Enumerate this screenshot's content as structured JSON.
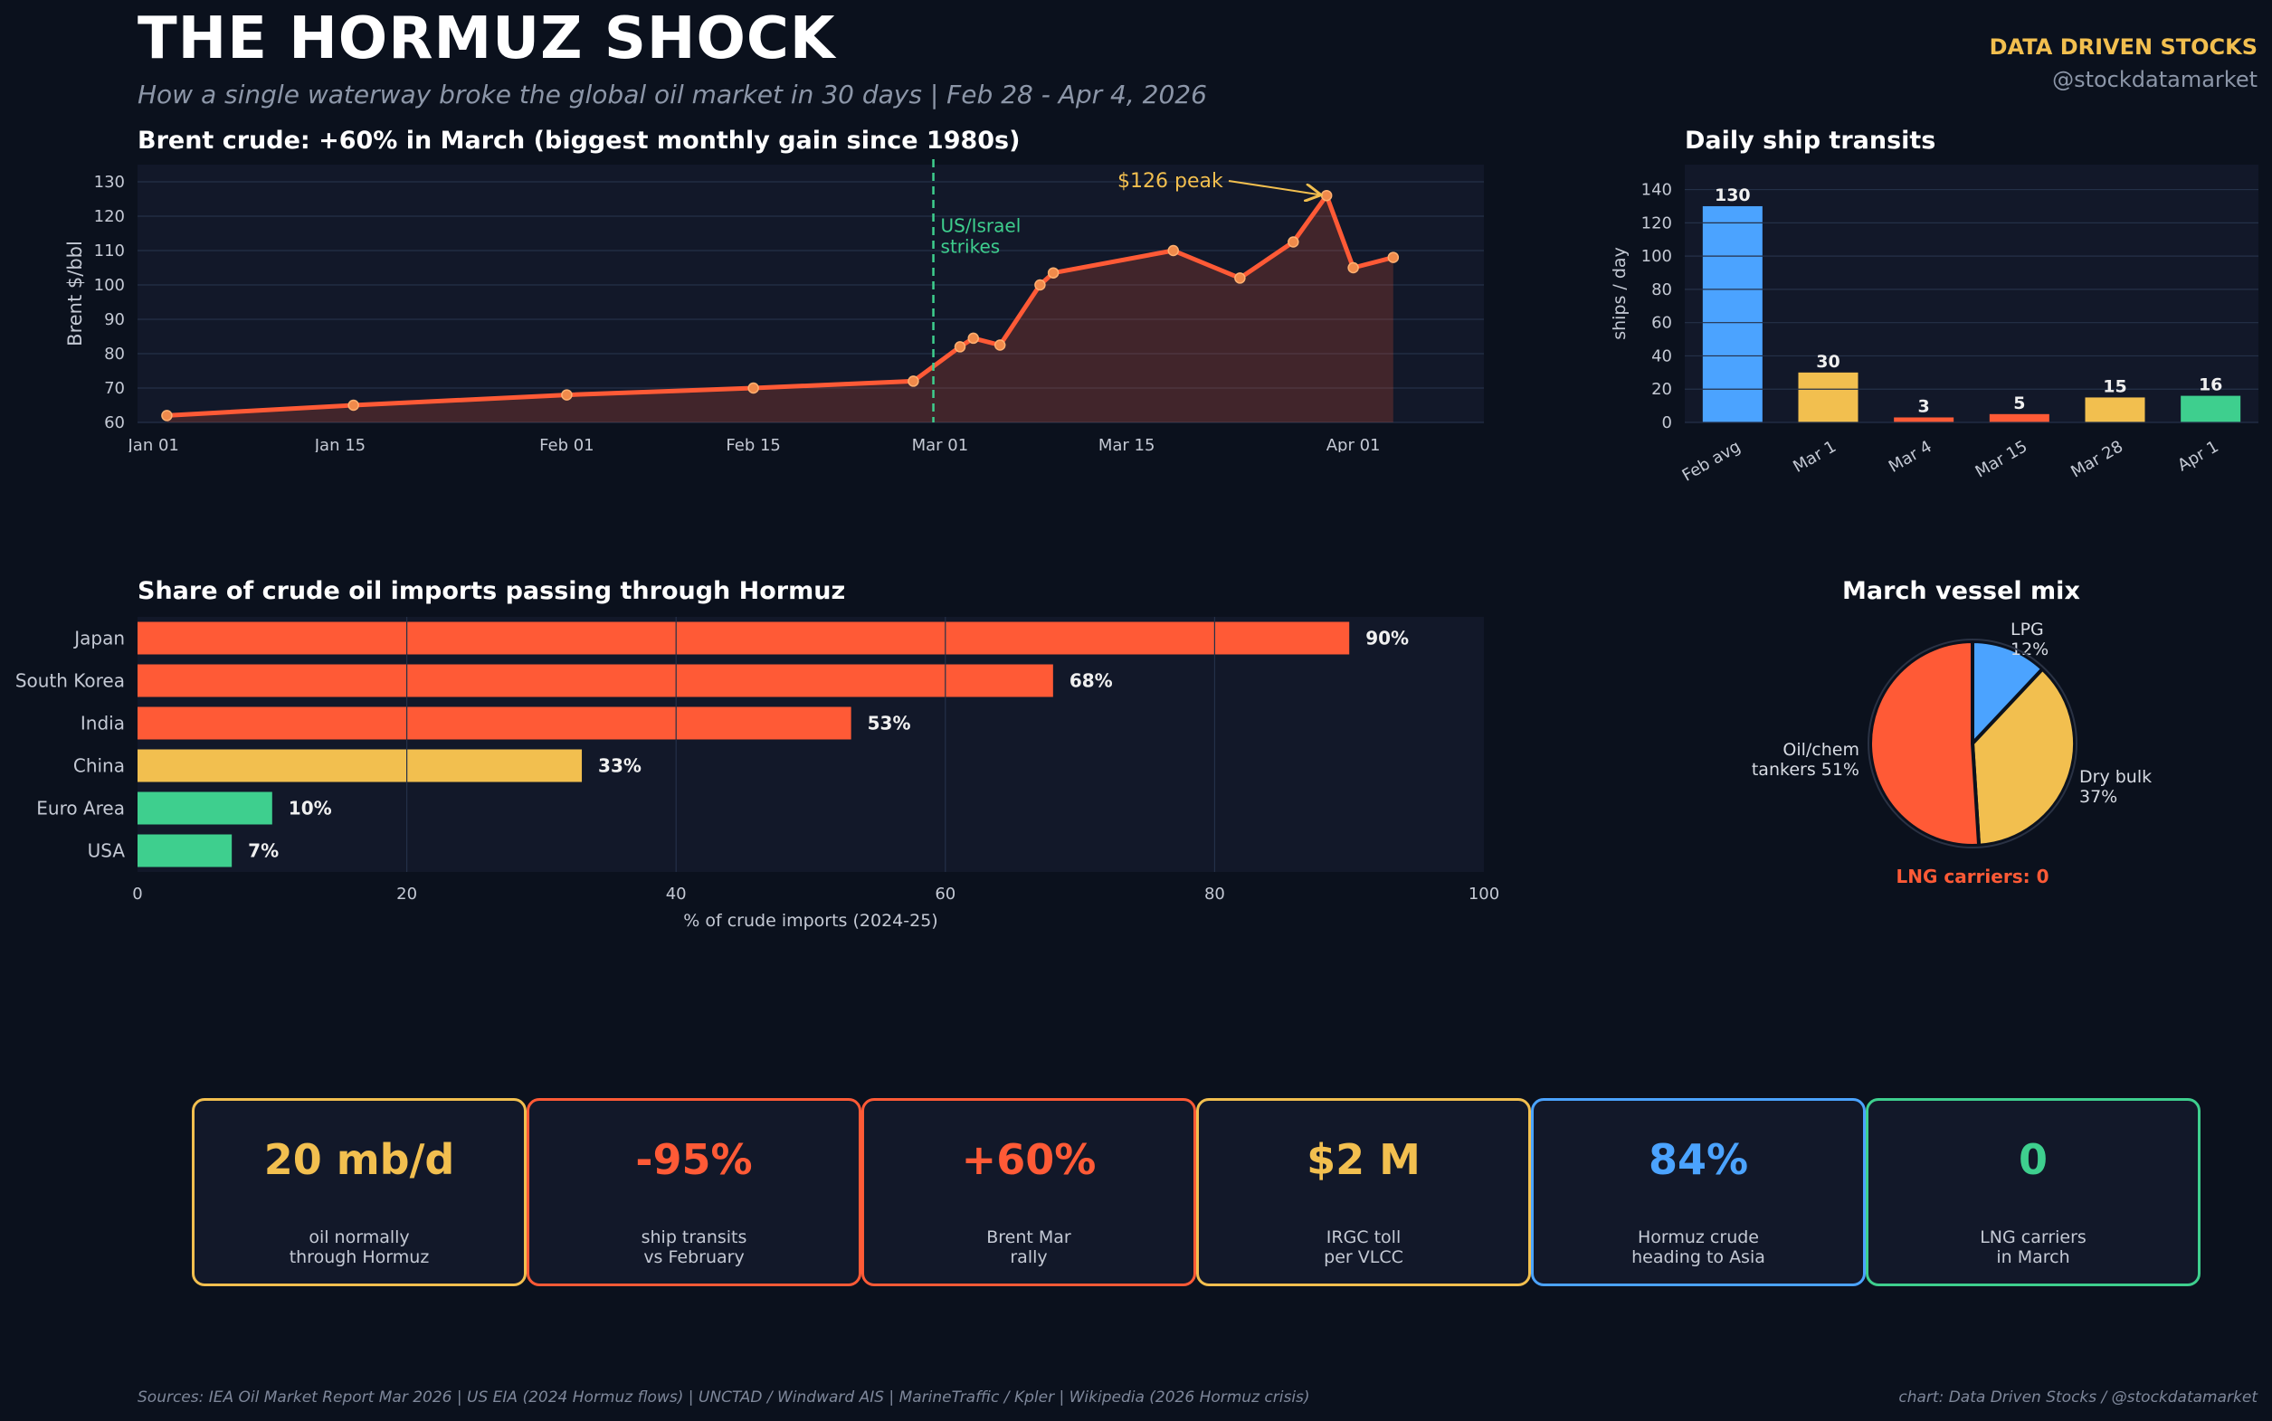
{
  "header": {
    "title": "THE HORMUZ SHOCK",
    "subtitle": "How a single waterway broke the global oil market in 30 days  |  Feb 28 - Apr 4, 2026",
    "brand": "DATA DRIVEN STOCKS",
    "handle": "@stockdatamarket"
  },
  "colors": {
    "background": "#0b111d",
    "panel": "#121829",
    "orange": "#ff5a36",
    "yellow": "#f2bf4f",
    "blue": "#4ba3ff",
    "green": "#3ecf8e"
  },
  "chart_data": [
    {
      "type": "line",
      "title": "Brent crude: +60% in March (biggest monthly gain since 1980s)",
      "ylabel": "Brent $/bbl",
      "xlabel": "",
      "ylim": [
        60,
        135
      ],
      "yticks": [
        60,
        70,
        80,
        90,
        100,
        110,
        120,
        130
      ],
      "xticks": [
        {
          "label": "Jan 01",
          "day": 0
        },
        {
          "label": "Jan 15",
          "day": 14
        },
        {
          "label": "Feb 01",
          "day": 31
        },
        {
          "label": "Feb 15",
          "day": 45
        },
        {
          "label": "Mar 01",
          "day": 59
        },
        {
          "label": "Mar 15",
          "day": 73
        },
        {
          "label": "Apr 01",
          "day": 90
        }
      ],
      "xlim": [
        -1.2,
        99.8
      ],
      "grid": true,
      "points": [
        {
          "day": 1,
          "value": 62
        },
        {
          "day": 15,
          "value": 65
        },
        {
          "day": 31,
          "value": 68
        },
        {
          "day": 45,
          "value": 70
        },
        {
          "day": 57,
          "value": 72
        },
        {
          "day": 60.5,
          "value": 82
        },
        {
          "day": 61.5,
          "value": 84.5
        },
        {
          "day": 63.5,
          "value": 82.5
        },
        {
          "day": 66.5,
          "value": 100
        },
        {
          "day": 67.5,
          "value": 103.5
        },
        {
          "day": 76.5,
          "value": 110
        },
        {
          "day": 81.5,
          "value": 102
        },
        {
          "day": 85.5,
          "value": 112.5
        },
        {
          "day": 88,
          "value": 126
        },
        {
          "day": 90,
          "value": 105
        },
        {
          "day": 93,
          "value": 108
        }
      ],
      "event": {
        "day": 58.5,
        "label_line1": "US/Israel",
        "label_line2": "strikes"
      },
      "peak_annotation": {
        "label": "$126 peak",
        "day": 88,
        "value": 126
      }
    },
    {
      "type": "bar",
      "title": "Daily ship transits",
      "ylabel": "ships / day",
      "categories": [
        "Feb avg",
        "Mar 1",
        "Mar 4",
        "Mar 15",
        "Mar 28",
        "Apr 1"
      ],
      "values": [
        130,
        30,
        3,
        5,
        15,
        16
      ],
      "bar_colors": [
        "#4ba3ff",
        "#f2bf4f",
        "#ff5a36",
        "#ff5a36",
        "#f2bf4f",
        "#3ecf8e"
      ],
      "ylim": [
        0,
        155
      ],
      "yticks": [
        0,
        20,
        40,
        60,
        80,
        100,
        120,
        140
      ],
      "grid": true
    },
    {
      "type": "bar",
      "orientation": "horizontal",
      "title": "Share of crude oil imports passing through Hormuz",
      "xlabel": "% of crude imports (2024-25)",
      "categories": [
        "Japan",
        "South Korea",
        "India",
        "China",
        "Euro Area",
        "USA"
      ],
      "values": [
        90,
        68,
        53,
        33,
        10,
        7
      ],
      "value_labels": [
        "90%",
        "68%",
        "53%",
        "33%",
        "10%",
        "7%"
      ],
      "bar_colors": [
        "#ff5a36",
        "#ff5a36",
        "#ff5a36",
        "#f2bf4f",
        "#3ecf8e",
        "#3ecf8e"
      ],
      "xlim": [
        0,
        100
      ],
      "xticks": [
        0,
        20,
        40,
        60,
        80,
        100
      ],
      "grid": true
    },
    {
      "type": "pie",
      "title": "March vessel mix",
      "slices": [
        {
          "label_line1": "LPG",
          "label_line2": "12%",
          "value": 12,
          "color": "#4ba3ff"
        },
        {
          "label_line1": "Dry bulk",
          "label_line2": "37%",
          "value": 37,
          "color": "#f2bf4f"
        },
        {
          "label_line1": "Oil/chem",
          "label_line2": "tankers 51%",
          "value": 51,
          "color": "#ff5a36"
        }
      ],
      "footnote": "LNG carriers: 0"
    }
  ],
  "kpis": [
    {
      "value": "20 mb/d",
      "label_line1": "oil normally",
      "label_line2": "through Hormuz",
      "color": "#f2bf4f"
    },
    {
      "value": "-95%",
      "label_line1": "ship transits",
      "label_line2": "vs February",
      "color": "#ff5a36"
    },
    {
      "value": "+60%",
      "label_line1": "Brent Mar",
      "label_line2": "rally",
      "color": "#ff5a36"
    },
    {
      "value": "$2 M",
      "label_line1": "IRGC toll",
      "label_line2": "per VLCC",
      "color": "#f2bf4f"
    },
    {
      "value": "84%",
      "label_line1": "Hormuz crude",
      "label_line2": "heading to Asia",
      "color": "#4ba3ff"
    },
    {
      "value": "0",
      "label_line1": "LNG carriers",
      "label_line2": "in March",
      "color": "#3ecf8e"
    }
  ],
  "footer": {
    "sources": "Sources: IEA Oil Market Report Mar 2026  |  US EIA (2024 Hormuz flows)  |  UNCTAD / Windward AIS  |  MarineTraffic / Kpler  |  Wikipedia (2026 Hormuz crisis)",
    "credit": "chart: Data Driven Stocks / @stockdatamarket"
  }
}
